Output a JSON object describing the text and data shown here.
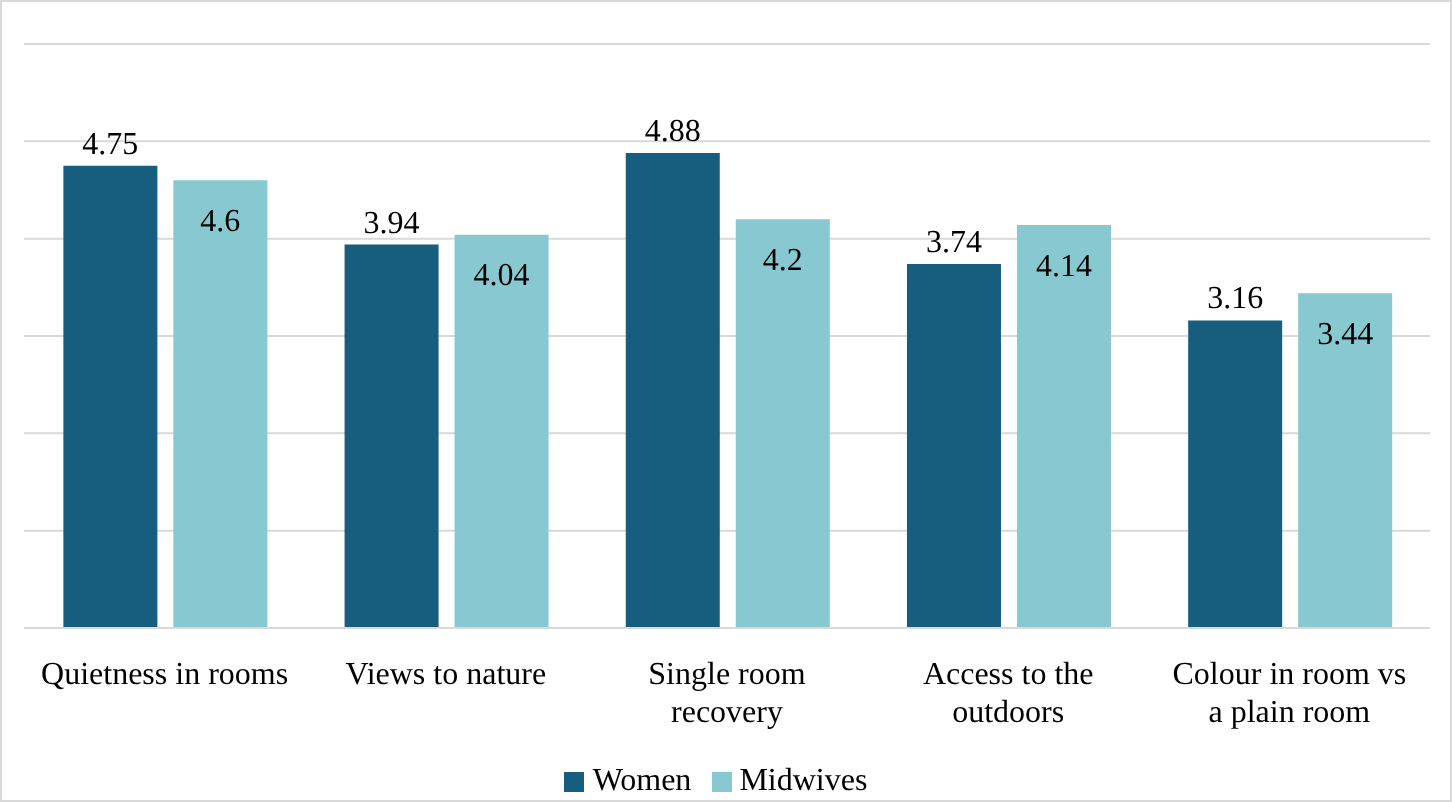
{
  "chart_data": {
    "type": "bar",
    "categories": [
      "Quietness in rooms",
      "Views to nature",
      "Single room recovery",
      "Access to the outdoors",
      "Colour in room vs a plain room"
    ],
    "series": [
      {
        "name": "Women",
        "color": "#175e7e",
        "values": [
          4.75,
          3.94,
          4.88,
          3.74,
          3.16
        ]
      },
      {
        "name": "Midwives",
        "color": "#88c8d0",
        "values": [
          4.6,
          4.04,
          4.2,
          4.14,
          3.44
        ]
      }
    ],
    "ylim": [
      0,
      6
    ],
    "yticks": [
      {
        "value": 0,
        "label": null
      },
      {
        "value": 1,
        "label": null
      },
      {
        "value": 2,
        "label": null
      },
      {
        "value": 3,
        "label": null
      },
      {
        "value": 4,
        "label": null
      },
      {
        "value": 5,
        "label": null
      },
      {
        "value": 6,
        "label": null
      }
    ],
    "tick_labels": "x",
    "grid": "y",
    "legend": "bottom",
    "data_labels": true
  }
}
